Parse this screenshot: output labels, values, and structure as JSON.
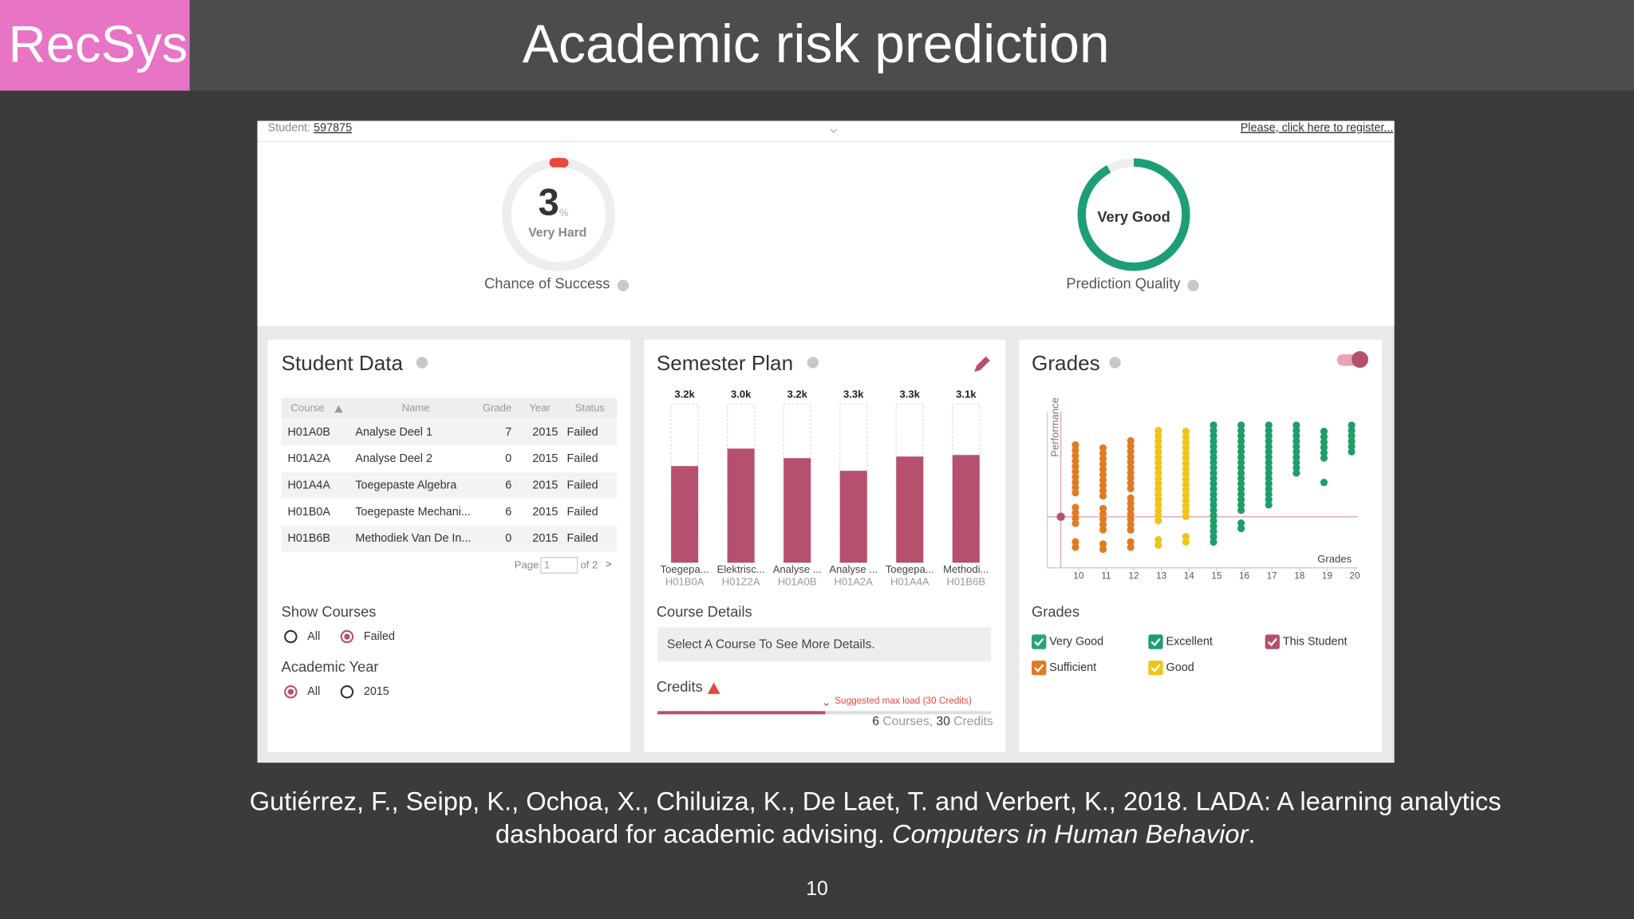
{
  "slide": {
    "brand": "RecSys",
    "title": "Academic risk prediction",
    "citation": {
      "line1": "Gutiérrez, F., Seipp, K., Ochoa, X., Chiluiza, K., De Laet, T. and Verbert, K., 2018. LADA: A learning analytics",
      "line2": "dashboard for academic advising.",
      "journal": "Computers in Human Behavior",
      "end": "."
    },
    "page_number": "10"
  },
  "dashboard": {
    "student_label": "Student:",
    "student_id": "597875",
    "register": "Please, click here to register...",
    "success": {
      "value": 3,
      "unit": "%",
      "difficulty": "Very Hard",
      "label": "Chance of Success"
    },
    "quality": {
      "rating": "Very Good",
      "label": "Prediction Quality"
    },
    "student_data": {
      "title": "Student Data",
      "columns": [
        "Course",
        "Name",
        "Grade",
        "Year",
        "Status"
      ],
      "rows": [
        [
          "H01A0B",
          "Analyse Deel 1",
          7,
          2015,
          "Failed"
        ],
        [
          "H01A2A",
          "Analyse Deel 2",
          0,
          2015,
          "Failed"
        ],
        [
          "H01A4A",
          "Toegepaste Algebra",
          6,
          2015,
          "Failed"
        ],
        [
          "H01B0A",
          "Toegepaste Mechani...",
          6,
          2015,
          "Failed"
        ],
        [
          "H01B6B",
          "Methodiek Van De In...",
          0,
          2015,
          "Failed"
        ]
      ],
      "page_label": "Page",
      "page": 1,
      "of": "of 2",
      "next": ">",
      "show_courses": {
        "label": "Show Courses",
        "options": [
          "All",
          "Failed"
        ],
        "selected": 1
      },
      "academic_year": {
        "label": "Academic Year",
        "options": [
          "All",
          "2015"
        ],
        "selected": 0
      }
    },
    "semester_plan": {
      "title": "Semester Plan",
      "bars": [
        {
          "label": "3.2k",
          "name": "Toegepa...",
          "code": "H01B0A",
          "fill": 61
        },
        {
          "label": "3.0k",
          "name": "Elektrisc...",
          "code": "H01Z2A",
          "fill": 72
        },
        {
          "label": "3.2k",
          "name": "Analyse ...",
          "code": "H01A0B",
          "fill": 66
        },
        {
          "label": "3.3k",
          "name": "Analyse ...",
          "code": "H01A2A",
          "fill": 58
        },
        {
          "label": "3.3k",
          "name": "Toegepa...",
          "code": "H01A4A",
          "fill": 67
        },
        {
          "label": "3.1k",
          "name": "Methodi...",
          "code": "H01B6B",
          "fill": 68
        }
      ],
      "details_label": "Course Details",
      "details_text": "Select A Course To See More Details.",
      "credits_label": "Credits",
      "max_load": "Suggested max load (30 Credits)",
      "courses": 6,
      "courses_unit": "Courses,",
      "credits": 30,
      "credits_unit": "Credits"
    },
    "grades": {
      "title": "Grades",
      "y_label": "Performance",
      "x_label": "Grades",
      "xticks": [
        10,
        11,
        12,
        13,
        14,
        15,
        16,
        17,
        18,
        19,
        20
      ],
      "legend_title": "Grades",
      "legend": [
        {
          "name": "Very Good",
          "color": "#27a372"
        },
        {
          "name": "Excellent",
          "color": "#1d9e75"
        },
        {
          "name": "This Student",
          "color": "#b5506e"
        },
        {
          "name": "Sufficient",
          "color": "#e07b24"
        },
        {
          "name": "Good",
          "color": "#f0c419"
        }
      ]
    }
  }
}
